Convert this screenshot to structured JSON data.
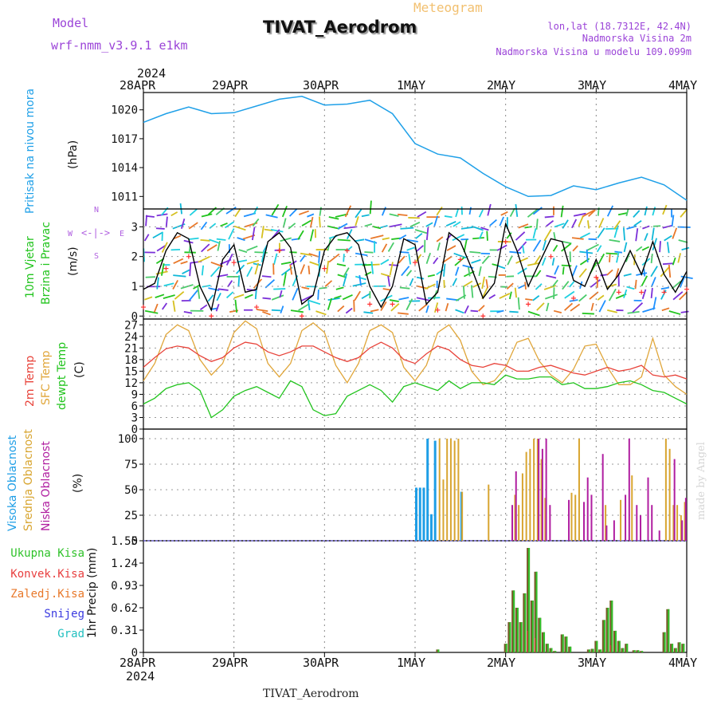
{
  "header": {
    "model_label": "Model",
    "model_name": "wrf-nmm_v3.9.1 e1km",
    "product": "Meteogram",
    "station": "TIVAT_Aerodrom",
    "lonlat": "lon,lat (18.7312E, 42.4N)",
    "elevation": "Nadmorska Visina 2m",
    "model_elevation": "Nadmorska Visina u modelu 109.099m"
  },
  "time_axis": {
    "year": "2024",
    "ticks": [
      "28APR",
      "29APR",
      "30APR",
      "1MAY",
      "2MAY",
      "3MAY",
      "4MAY"
    ]
  },
  "footer_station": "TIVAT_Aerodrom",
  "watermark": "made by Angel",
  "colors": {
    "pressure": "#1fa0e8",
    "wind_speed": "#000000",
    "wind_gust_marker": "#ff3030",
    "temp_2m": "#e8433a",
    "temp_sfc": "#e0a63a",
    "dewpoint": "#22c41e",
    "cloud_high": "#1e9ee6",
    "cloud_mid": "#d8a530",
    "cloud_low": "#b01ea0",
    "precip_total": "#2fc22a",
    "precip_conv": "#e84040",
    "precip_grid": "#e8782a",
    "snow": "#3a3ae0",
    "graupel": "#22c0c0",
    "precip_bar": "#7a5a2a"
  },
  "panels": {
    "pressure": {
      "labels": [
        "Pritisak na nivou mora"
      ],
      "units": "(hPa)",
      "yticks": [
        "1020",
        "1017",
        "1014",
        "1011"
      ]
    },
    "wind": {
      "labels": [
        "10m Vjetar",
        "Brzina i Pravac"
      ],
      "units": "(m/s)",
      "yticks": [
        "3",
        "2",
        "1",
        "0"
      ],
      "compass": {
        "n": "N",
        "s": "S",
        "w": "W",
        "e": "E"
      }
    },
    "temp": {
      "labels": [
        "2m Temp",
        "SFC Temp",
        "dewpt Temp"
      ],
      "units": "(C)",
      "yticks": [
        "27",
        "24",
        "21",
        "18",
        "15",
        "12",
        "9",
        "6",
        "3",
        "0"
      ]
    },
    "cloud": {
      "labels": [
        "Visoka Oblacnost",
        "Srednja Oblacnost",
        "Niska Oblacnost"
      ],
      "units": "(%)",
      "yticks": [
        "100",
        "75",
        "50",
        "25",
        "0"
      ]
    },
    "precip": {
      "legend": [
        "Ukupna Kisa",
        "Konvek.Kisa",
        "Zaledj.Kisa",
        "Snijeg",
        "Grad"
      ],
      "units": "1hr Precip (mm)",
      "yticks": [
        "1.55",
        "1.24",
        "0.93",
        "0.62",
        "0.31",
        "0"
      ]
    }
  },
  "chart_data": [
    {
      "type": "line",
      "title": "",
      "ylabel": "Pritisak na nivou mora (hPa)",
      "ylim": [
        1009.7,
        1021.8
      ],
      "x_hours": [
        0,
        6,
        12,
        18,
        24,
        30,
        36,
        42,
        48,
        54,
        60,
        66,
        72,
        78,
        84,
        90,
        96,
        102,
        108,
        114,
        120,
        126,
        132,
        138,
        144
      ],
      "series": [
        {
          "name": "Pritisak na nivou mora",
          "values": [
            1018.7,
            1019.6,
            1020.3,
            1019.6,
            1019.7,
            1020.4,
            1021.1,
            1021.4,
            1020.5,
            1020.6,
            1021.0,
            1019.6,
            1016.5,
            1015.4,
            1015.0,
            1013.4,
            1012.0,
            1011.0,
            1011.1,
            1012.1,
            1011.7,
            1012.4,
            1013.0,
            1012.2,
            1010.6
          ]
        }
      ]
    },
    {
      "type": "line",
      "title": "",
      "ylabel": "10m Vjetar Brzina i Pravac (m/s)",
      "ylim": [
        -0.1,
        3.6
      ],
      "x_hours": [
        0,
        3,
        6,
        9,
        12,
        15,
        18,
        21,
        24,
        27,
        30,
        33,
        36,
        39,
        42,
        45,
        48,
        51,
        54,
        57,
        60,
        63,
        66,
        69,
        72,
        75,
        78,
        81,
        84,
        87,
        90,
        93,
        96,
        99,
        102,
        105,
        108,
        111,
        114,
        117,
        120,
        123,
        126,
        129,
        132,
        135,
        138,
        141,
        144
      ],
      "series": [
        {
          "name": "10m Vjetar",
          "values": [
            0.9,
            1.1,
            2.2,
            2.8,
            2.6,
            1.0,
            0.2,
            1.9,
            2.4,
            0.8,
            0.9,
            2.5,
            2.8,
            2.3,
            0.4,
            0.7,
            2.2,
            2.7,
            2.8,
            2.4,
            1.0,
            0.3,
            1.0,
            2.6,
            2.4,
            0.4,
            0.8,
            2.8,
            2.5,
            1.6,
            0.6,
            1.1,
            3.1,
            2.2,
            1.0,
            1.8,
            2.6,
            2.5,
            1.2,
            1.0,
            1.9,
            0.9,
            1.4,
            2.2,
            1.4,
            2.5,
            1.4,
            0.8,
            1.5
          ]
        }
      ]
    },
    {
      "type": "line",
      "title": "",
      "ylabel": "Temp (C)",
      "ylim": [
        0,
        28.5
      ],
      "x_hours": [
        0,
        3,
        6,
        9,
        12,
        15,
        18,
        21,
        24,
        27,
        30,
        33,
        36,
        39,
        42,
        45,
        48,
        51,
        54,
        57,
        60,
        63,
        66,
        69,
        72,
        75,
        78,
        81,
        84,
        87,
        90,
        93,
        96,
        99,
        102,
        105,
        108,
        111,
        114,
        117,
        120,
        123,
        126,
        129,
        132,
        135,
        138,
        141,
        144
      ],
      "series": [
        {
          "name": "2m Temp",
          "values": [
            16.0,
            18.5,
            20.8,
            21.5,
            21.0,
            19.0,
            17.5,
            18.5,
            21.0,
            22.5,
            22.0,
            20.0,
            19.0,
            20.0,
            21.5,
            21.5,
            20.0,
            18.5,
            17.5,
            18.5,
            21.0,
            22.5,
            21.0,
            18.0,
            17.0,
            19.5,
            21.5,
            20.5,
            18.0,
            16.5,
            16.0,
            17.0,
            16.5,
            15.0,
            15.0,
            16.0,
            16.5,
            15.5,
            14.5,
            14.0,
            15.0,
            16.0,
            15.0,
            15.5,
            16.5,
            14.0,
            13.5,
            14.0,
            13.0
          ]
        },
        {
          "name": "SFC Temp",
          "values": [
            12.5,
            17.0,
            24.5,
            27.0,
            25.5,
            18.0,
            14.0,
            17.0,
            25.0,
            28.0,
            26.0,
            17.0,
            13.5,
            17.0,
            25.5,
            27.5,
            25.0,
            16.5,
            12.0,
            17.0,
            25.5,
            27.0,
            25.0,
            16.0,
            12.5,
            16.5,
            25.0,
            27.0,
            23.0,
            15.0,
            11.5,
            12.5,
            16.0,
            22.5,
            23.5,
            17.5,
            14.0,
            12.0,
            15.5,
            21.5,
            22.0,
            16.0,
            11.5,
            11.5,
            13.5,
            23.5,
            14.0,
            11.0,
            9.0
          ]
        },
        {
          "name": "dewpt Temp",
          "values": [
            6.5,
            8.0,
            10.5,
            11.5,
            12.0,
            10.0,
            3.0,
            5.0,
            8.5,
            10.0,
            11.0,
            9.5,
            8.0,
            12.5,
            11.0,
            5.0,
            3.5,
            4.0,
            8.5,
            10.0,
            11.5,
            10.0,
            7.0,
            11.0,
            12.0,
            11.0,
            10.0,
            12.5,
            10.5,
            12.0,
            12.0,
            11.5,
            14.0,
            13.0,
            13.0,
            13.5,
            13.5,
            11.5,
            12.0,
            10.5,
            10.5,
            11.0,
            12.0,
            12.5,
            11.5,
            10.0,
            9.5,
            8.0,
            6.5
          ]
        }
      ]
    },
    {
      "type": "bar",
      "title": "",
      "ylabel": "Oblacnost (%)",
      "ylim": [
        0,
        100
      ],
      "series": [
        {
          "name": "Visoka Oblacnost",
          "x_hours": [
            72,
            73,
            74,
            75,
            76,
            77,
            84,
            100
          ],
          "values": [
            52,
            52,
            52,
            100,
            26,
            98,
            48,
            0
          ]
        },
        {
          "name": "Srednja Oblacnost",
          "x_hours": [
            78,
            79,
            80,
            81,
            82,
            83,
            84,
            85,
            91,
            98,
            99,
            100,
            101,
            102,
            103,
            104,
            105,
            106,
            113,
            114,
            115,
            122,
            126,
            129,
            138,
            139,
            140,
            141,
            142,
            143
          ],
          "values": [
            100,
            60,
            100,
            100,
            98,
            100,
            48,
            0,
            55,
            45,
            35,
            66,
            87,
            90,
            100,
            100,
            80,
            42,
            47,
            45,
            100,
            35,
            40,
            64,
            100,
            90,
            35,
            35,
            25,
            38
          ]
        },
        {
          "name": "Niska Oblacnost",
          "x_hours": [
            96,
            97,
            98,
            99,
            104,
            105,
            106,
            107,
            108,
            109,
            112,
            116,
            117,
            118,
            121,
            122,
            124,
            127,
            128,
            130,
            131,
            133,
            134,
            135,
            136,
            140,
            142,
            143
          ],
          "values": [
            0,
            35,
            68,
            0,
            100,
            90,
            100,
            35,
            0,
            0,
            40,
            38,
            62,
            45,
            85,
            15,
            20,
            45,
            100,
            35,
            25,
            62,
            35,
            0,
            10,
            80,
            20,
            42
          ]
        }
      ]
    },
    {
      "type": "bar",
      "title": "",
      "ylabel": "1hr Precip (mm)",
      "ylim": [
        0,
        1.55
      ],
      "series": [
        {
          "name": "Ukupna Kisa",
          "x_hours": [
            78,
            96,
            97,
            98,
            99,
            100,
            101,
            102,
            103,
            104,
            105,
            106,
            107,
            108,
            109,
            111,
            112,
            113,
            118,
            119,
            120,
            121,
            122,
            123,
            124,
            125,
            126,
            127,
            128,
            130,
            131,
            132,
            138,
            139,
            140,
            141,
            142,
            143
          ],
          "values": [
            0.04,
            0.12,
            0.42,
            0.86,
            0.62,
            0.42,
            0.82,
            1.45,
            0.72,
            1.12,
            0.48,
            0.28,
            0.12,
            0.06,
            0.02,
            0.25,
            0.22,
            0.08,
            0.04,
            0.05,
            0.16,
            0.04,
            0.45,
            0.62,
            0.72,
            0.3,
            0.16,
            0.06,
            0.12,
            0.03,
            0.03,
            0.02,
            0.28,
            0.6,
            0.12,
            0.06,
            0.14,
            0.12
          ]
        },
        {
          "name": "Konvek.Kisa",
          "x_hours": [
            102,
            104,
            124
          ],
          "values": [
            0.3,
            0.2,
            0.1
          ]
        }
      ]
    }
  ]
}
